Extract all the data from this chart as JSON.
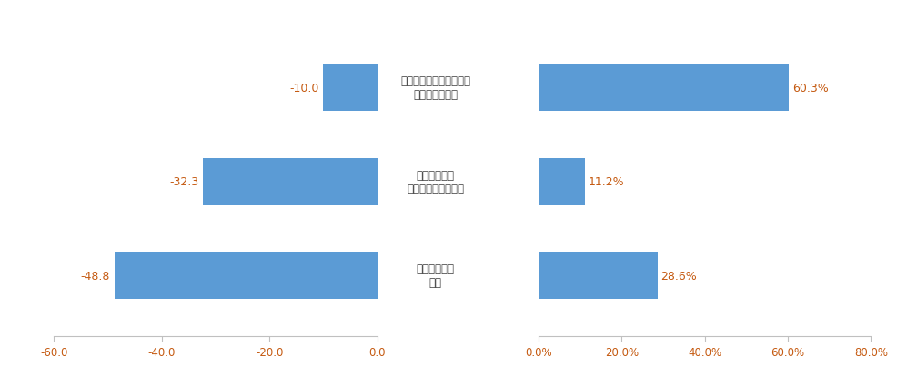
{
  "categories": [
    "変更したいと思わない・\n検討していない",
    "変更したい・\n変更を検討している",
    "分からない・\n未定"
  ],
  "nps_values": [
    -10.0,
    -32.3,
    -48.8
  ],
  "pct_values": [
    60.3,
    11.2,
    28.6
  ],
  "bar_color": "#5b9bd5",
  "value_color": "#c55a11",
  "label_color": "#404040",
  "axis_tick_color": "#c55a11",
  "nps_xlim": [
    -60,
    0
  ],
  "pct_xlim": [
    0,
    80
  ],
  "nps_xticks": [
    -60.0,
    -40.0,
    -20.0,
    0.0
  ],
  "pct_xticks": [
    0.0,
    20.0,
    40.0,
    60.0,
    80.0
  ],
  "background_color": "#ffffff",
  "bar_height": 0.5
}
